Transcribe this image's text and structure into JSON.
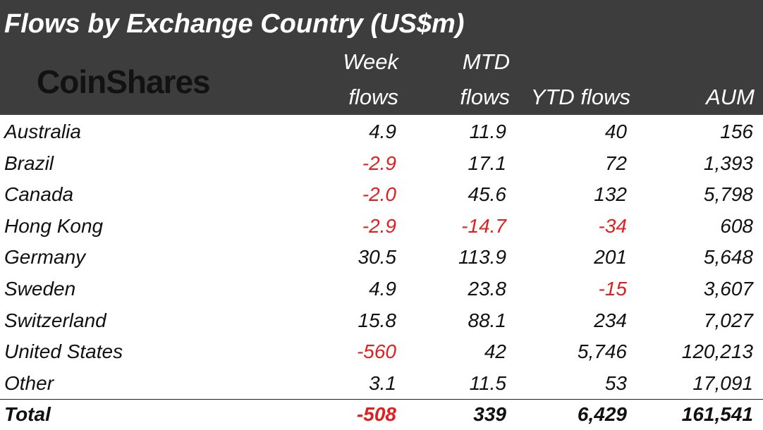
{
  "title": "Flows by Exchange Country (US$m)",
  "logo": "CoinShares",
  "colors": {
    "header_bg": "#3d3d3d",
    "negative": "#e02020",
    "text": "#111111"
  },
  "chart_data": {
    "type": "table",
    "title": "Flows by Exchange Country (US$m)",
    "columns": [
      "Week flows",
      "MTD flows",
      "YTD flows",
      "AUM"
    ],
    "header": {
      "week_line1": "Week",
      "week_line2": "flows",
      "mtd_line1": "MTD",
      "mtd_line2": "flows",
      "ytd": "YTD flows",
      "aum": "AUM"
    },
    "rows": [
      {
        "country": "Australia",
        "week": "4.9",
        "mtd": "11.9",
        "ytd": "40",
        "aum": "156"
      },
      {
        "country": "Brazil",
        "week": "-2.9",
        "mtd": "17.1",
        "ytd": "72",
        "aum": "1,393"
      },
      {
        "country": "Canada",
        "week": "-2.0",
        "mtd": "45.6",
        "ytd": "132",
        "aum": "5,798"
      },
      {
        "country": "Hong Kong",
        "week": "-2.9",
        "mtd": "-14.7",
        "ytd": "-34",
        "aum": "608"
      },
      {
        "country": "Germany",
        "week": "30.5",
        "mtd": "113.9",
        "ytd": "201",
        "aum": "5,648"
      },
      {
        "country": "Sweden",
        "week": "4.9",
        "mtd": "23.8",
        "ytd": "-15",
        "aum": "3,607"
      },
      {
        "country": "Switzerland",
        "week": "15.8",
        "mtd": "88.1",
        "ytd": "234",
        "aum": "7,027"
      },
      {
        "country": "United States",
        "week": "-560",
        "mtd": "42",
        "ytd": "5,746",
        "aum": "120,213"
      },
      {
        "country": "Other",
        "week": "3.1",
        "mtd": "11.5",
        "ytd": "53",
        "aum": "17,091"
      }
    ],
    "total": {
      "country": "Total",
      "week": "-508",
      "mtd": "339",
      "ytd": "6,429",
      "aum": "161,541"
    }
  }
}
